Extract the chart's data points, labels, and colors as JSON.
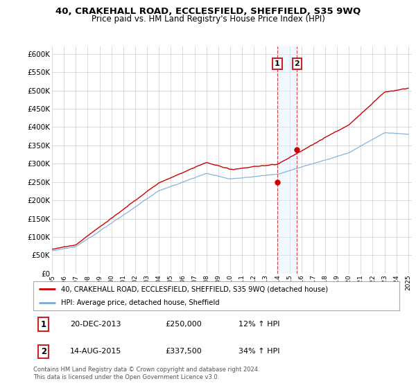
{
  "title": "40, CRAKEHALL ROAD, ECCLESFIELD, SHEFFIELD, S35 9WQ",
  "subtitle": "Price paid vs. HM Land Registry's House Price Index (HPI)",
  "legend_line1": "40, CRAKEHALL ROAD, ECCLESFIELD, SHEFFIELD, S35 9WQ (detached house)",
  "legend_line2": "HPI: Average price, detached house, Sheffield",
  "transaction1_date": "20-DEC-2013",
  "transaction1_price": "£250,000",
  "transaction1_hpi": "12% ↑ HPI",
  "transaction1_year": 2013.97,
  "transaction1_value": 250000,
  "transaction2_date": "14-AUG-2015",
  "transaction2_price": "£337,500",
  "transaction2_hpi": "34% ↑ HPI",
  "transaction2_year": 2015.62,
  "transaction2_value": 337500,
  "footer": "Contains HM Land Registry data © Crown copyright and database right 2024.\nThis data is licensed under the Open Government Licence v3.0.",
  "red_color": "#cc0000",
  "blue_color": "#7aaadd",
  "highlight_color": "#ddeeff",
  "ylim": [
    0,
    620000
  ],
  "yticks": [
    0,
    50000,
    100000,
    150000,
    200000,
    250000,
    300000,
    350000,
    400000,
    450000,
    500000,
    550000,
    600000
  ],
  "bg_color": "#ffffff",
  "grid_color": "#cccccc"
}
